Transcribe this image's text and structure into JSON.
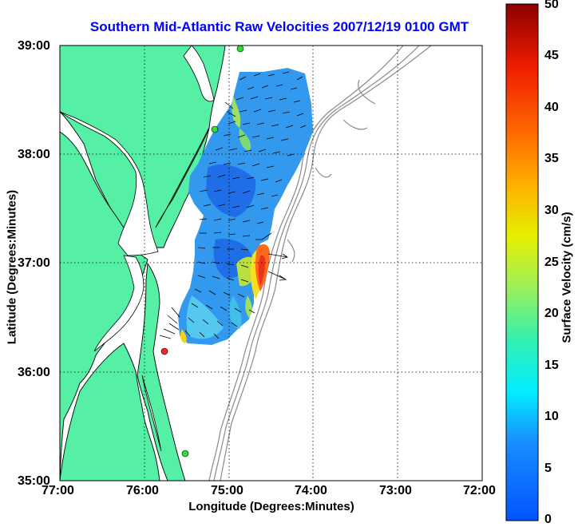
{
  "title": "Southern Mid-Atlantic Raw Velocities 2007/12/19 0100 GMT",
  "x_axis": {
    "label": "Longitude (Degrees:Minutes)",
    "ticks": [
      "77:00",
      "76:00",
      "75:00",
      "74:00",
      "73:00",
      "72:00"
    ]
  },
  "y_axis": {
    "label": "Latitude (Degrees:Minutes)",
    "ticks": [
      "39:00",
      "38:00",
      "37:00",
      "36:00",
      "35:00"
    ]
  },
  "colorbar": {
    "label": "Surface Velocity (cm/s)",
    "ticks": [
      "50",
      "45",
      "40",
      "35",
      "30",
      "25",
      "20",
      "15",
      "10",
      "5",
      "0"
    ],
    "range": [
      0,
      50
    ],
    "colormap": "jet"
  },
  "map": {
    "lon_range": [
      -77,
      -72
    ],
    "lat_range": [
      35,
      39
    ],
    "land_color": "#55f0a5",
    "grid": "dotted",
    "stations": [
      {
        "lon": -74.96,
        "lat": 38.93,
        "color": "#33dd33"
      },
      {
        "lon": -75.09,
        "lat": 38.24,
        "color": "#33dd33"
      },
      {
        "lon": -75.76,
        "lat": 36.18,
        "color": "#ff2222"
      },
      {
        "lon": -75.51,
        "lat": 35.23,
        "color": "#33dd33"
      }
    ]
  }
}
